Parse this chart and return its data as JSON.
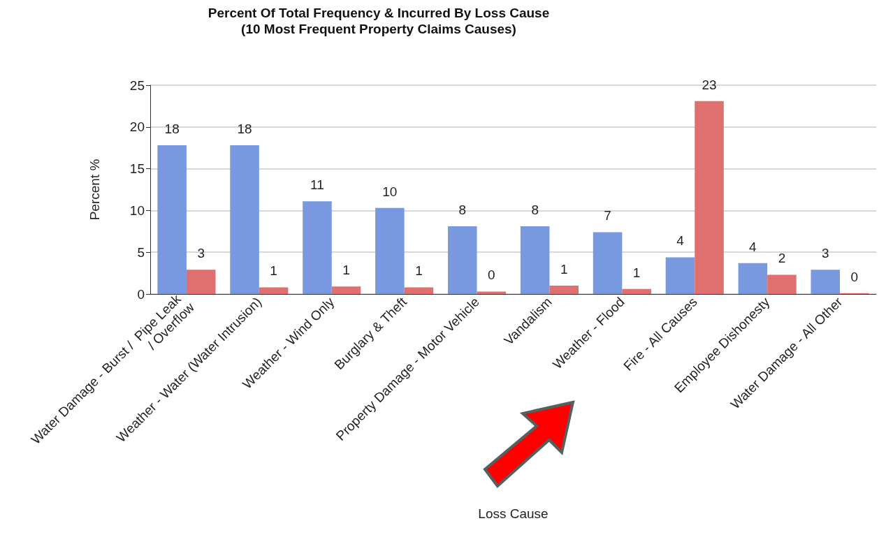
{
  "chart_data": {
    "type": "bar",
    "title": "Percent Of Total Frequency & Incurred By Loss Cause",
    "subtitle": "(10 Most Frequent Property Claims Causes)",
    "xlabel": "Loss Cause",
    "ylabel": "Percent %",
    "categories": [
      "Water Damage - Burst /  Pipe Leak / Overflow",
      "Weather - Water (Water Intrusion)",
      "Weather - Wind Only",
      "Burglary & Theft",
      "Property Damage - Motor Vehicle",
      "Vandalism",
      "Weather - Flood",
      "Fire - All Causes",
      "Employee Dishonesty",
      "Water Damage - All Other"
    ],
    "series": [
      {
        "color": "#7899e0",
        "values": [
          17.8,
          17.8,
          11.1,
          10.3,
          8.1,
          8.1,
          7.4,
          4.4,
          3.7,
          2.9
        ],
        "value_labels": [
          "18",
          "18",
          "11",
          "10",
          "8",
          "8",
          "7",
          "4",
          "4",
          "3"
        ]
      },
      {
        "color": "#e07070",
        "values": [
          2.9,
          0.8,
          0.9,
          0.8,
          0.3,
          1.0,
          0.6,
          23.1,
          2.3,
          0.1
        ],
        "value_labels": [
          "3",
          "1",
          "1",
          "1",
          "0",
          "1",
          "1",
          "23",
          "2",
          "0"
        ]
      }
    ],
    "ylim": [
      0,
      25
    ],
    "yticks": [
      0,
      5,
      10,
      15,
      20,
      25
    ],
    "grid": "y"
  }
}
